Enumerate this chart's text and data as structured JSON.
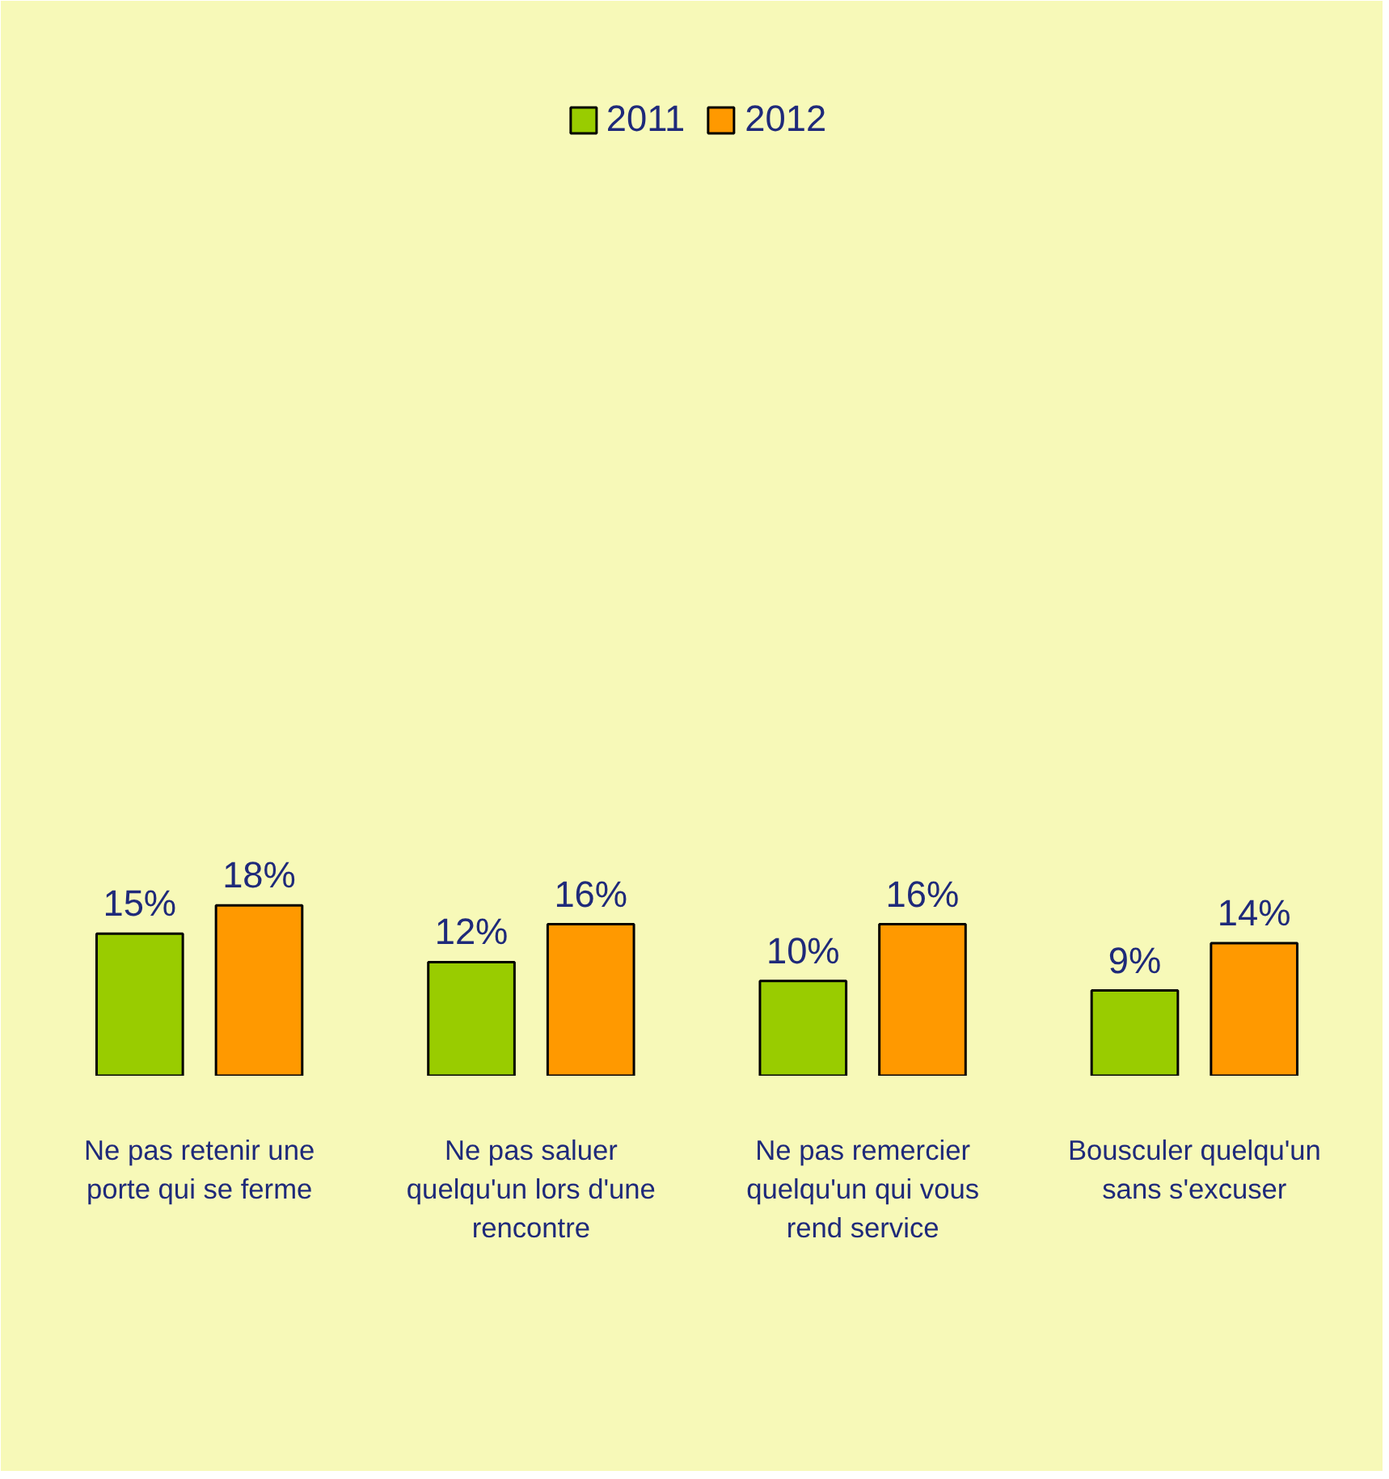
{
  "chart_data": {
    "type": "bar",
    "categories": [
      "Ne pas retenir une porte qui se ferme",
      "Ne pas saluer quelqu'un lors d'une rencontre",
      "Ne pas remercier quelqu'un qui vous rend service",
      "Bousculer quelqu'un sans s'excuser"
    ],
    "series": [
      {
        "name": "2011",
        "color": "#99cc00",
        "values": [
          15,
          12,
          10,
          9
        ],
        "value_labels": [
          "15%",
          "12%",
          "10%",
          "9%"
        ]
      },
      {
        "name": "2012",
        "color": "#ff9900",
        "values": [
          18,
          16,
          16,
          14
        ],
        "value_labels": [
          "18%",
          "16%",
          "16%",
          "14%"
        ]
      }
    ],
    "ylim": [
      0,
      105
    ],
    "legend": "top",
    "grid": false
  }
}
